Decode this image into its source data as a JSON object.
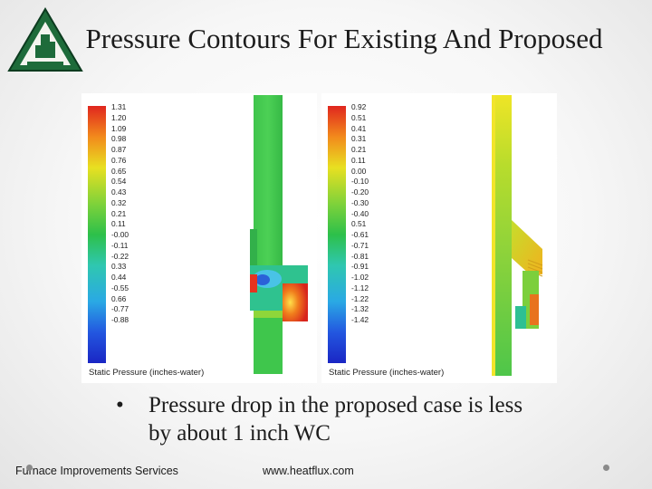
{
  "slide": {
    "title": "Pressure Contours For Existing And Proposed",
    "bullet": "Pressure drop in the proposed case is less by about 1 inch WC",
    "bullet_symbol": "•",
    "footer_left": "Furnace Improvements Services",
    "footer_right": "www.heatflux.com"
  },
  "existing": {
    "scale_ticks": [
      "1.31",
      "1.20",
      "1.09",
      "0.98",
      "0.87",
      "0.76",
      "0.65",
      "0.54",
      "0.43",
      "0.32",
      "0.21",
      "0.11",
      "-0.00",
      "-0.11",
      "-0.22",
      "0.33",
      "0.44",
      "-0.55",
      "0.66",
      "-0.77",
      "-0.88"
    ],
    "caption": "Static Pressure (inches-water)"
  },
  "proposed": {
    "scale_ticks": [
      "0.92",
      "0.51",
      "0.41",
      "0.31",
      "0.21",
      "0.11",
      "0.00",
      "-0.10",
      "-0.20",
      "-0.30",
      "-0.40",
      "0.51",
      "-0.61",
      "-0.71",
      "-0.81",
      "-0.91",
      "-1.02",
      "-1.12",
      "-1.22",
      "-1.32",
      "-1.42"
    ],
    "caption": "Static Pressure (inches-water)"
  },
  "colors": {
    "accent": "#1f6f3a",
    "text": "#1c1c1c"
  }
}
